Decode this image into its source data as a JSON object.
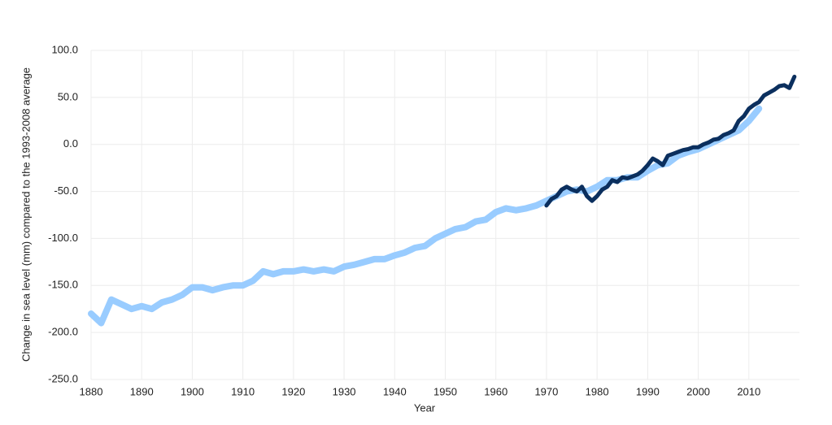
{
  "chart_data": {
    "type": "line",
    "x_label": "Year",
    "y_label": "Change in sea level (mm) compared to the 1993-2008 average",
    "xlim": [
      1880,
      2020
    ],
    "xticks": [
      1880,
      1890,
      1900,
      1910,
      1920,
      1930,
      1940,
      1950,
      1960,
      1970,
      1980,
      1990,
      2000,
      2010
    ],
    "ylim": [
      -250,
      100
    ],
    "yticks": [
      {
        "value": -250,
        "label": "-250.0"
      },
      {
        "value": -200,
        "label": "-200.0"
      },
      {
        "value": -150,
        "label": "-150.0"
      },
      {
        "value": -100,
        "label": "-100.0"
      },
      {
        "value": -50,
        "label": "-50.0"
      },
      {
        "value": 0,
        "label": "0.0"
      },
      {
        "value": 50,
        "label": "50.0"
      },
      {
        "value": 100,
        "label": "100.0"
      }
    ],
    "grid": true,
    "series": [
      {
        "color": "#99ccff",
        "x": [
          1880,
          1882,
          1884,
          1886,
          1888,
          1890,
          1892,
          1894,
          1896,
          1898,
          1900,
          1902,
          1904,
          1906,
          1908,
          1910,
          1912,
          1914,
          1916,
          1918,
          1920,
          1922,
          1924,
          1926,
          1928,
          1930,
          1932,
          1934,
          1936,
          1938,
          1940,
          1942,
          1944,
          1946,
          1948,
          1950,
          1952,
          1954,
          1956,
          1958,
          1960,
          1962,
          1964,
          1966,
          1968,
          1970,
          1972,
          1974,
          1976,
          1978,
          1980,
          1982,
          1984,
          1986,
          1988,
          1990,
          1992,
          1994,
          1996,
          1998,
          2000,
          2002,
          2004,
          2006,
          2008,
          2010,
          2012
        ],
        "values": [
          -180,
          -190,
          -165,
          -170,
          -175,
          -172,
          -175,
          -168,
          -165,
          -160,
          -152,
          -152,
          -155,
          -152,
          -150,
          -150,
          -145,
          -135,
          -138,
          -135,
          -135,
          -133,
          -135,
          -133,
          -135,
          -130,
          -128,
          -125,
          -122,
          -122,
          -118,
          -115,
          -110,
          -108,
          -100,
          -95,
          -90,
          -88,
          -82,
          -80,
          -72,
          -68,
          -70,
          -68,
          -65,
          -60,
          -55,
          -50,
          -48,
          -50,
          -45,
          -38,
          -38,
          -35,
          -35,
          -28,
          -22,
          -20,
          -12,
          -8,
          -5,
          0,
          5,
          10,
          15,
          25,
          38
        ]
      },
      {
        "color": "#0b2f5e",
        "x": [
          1970,
          1971,
          1972,
          1973,
          1974,
          1975,
          1976,
          1977,
          1978,
          1979,
          1980,
          1981,
          1982,
          1983,
          1984,
          1985,
          1986,
          1987,
          1988,
          1989,
          1990,
          1991,
          1992,
          1993,
          1994,
          1995,
          1996,
          1997,
          1998,
          1999,
          2000,
          2001,
          2002,
          2003,
          2004,
          2005,
          2006,
          2007,
          2008,
          2009,
          2010,
          2011,
          2012,
          2013,
          2014,
          2015,
          2016,
          2017,
          2018,
          2019
        ],
        "values": [
          -65,
          -58,
          -55,
          -48,
          -45,
          -48,
          -50,
          -45,
          -55,
          -60,
          -55,
          -48,
          -45,
          -38,
          -40,
          -35,
          -36,
          -34,
          -32,
          -28,
          -22,
          -15,
          -18,
          -22,
          -12,
          -10,
          -8,
          -6,
          -5,
          -3,
          -3,
          0,
          2,
          5,
          6,
          10,
          12,
          15,
          25,
          30,
          38,
          42,
          45,
          52,
          55,
          58,
          62,
          63,
          60,
          72
        ]
      }
    ]
  }
}
